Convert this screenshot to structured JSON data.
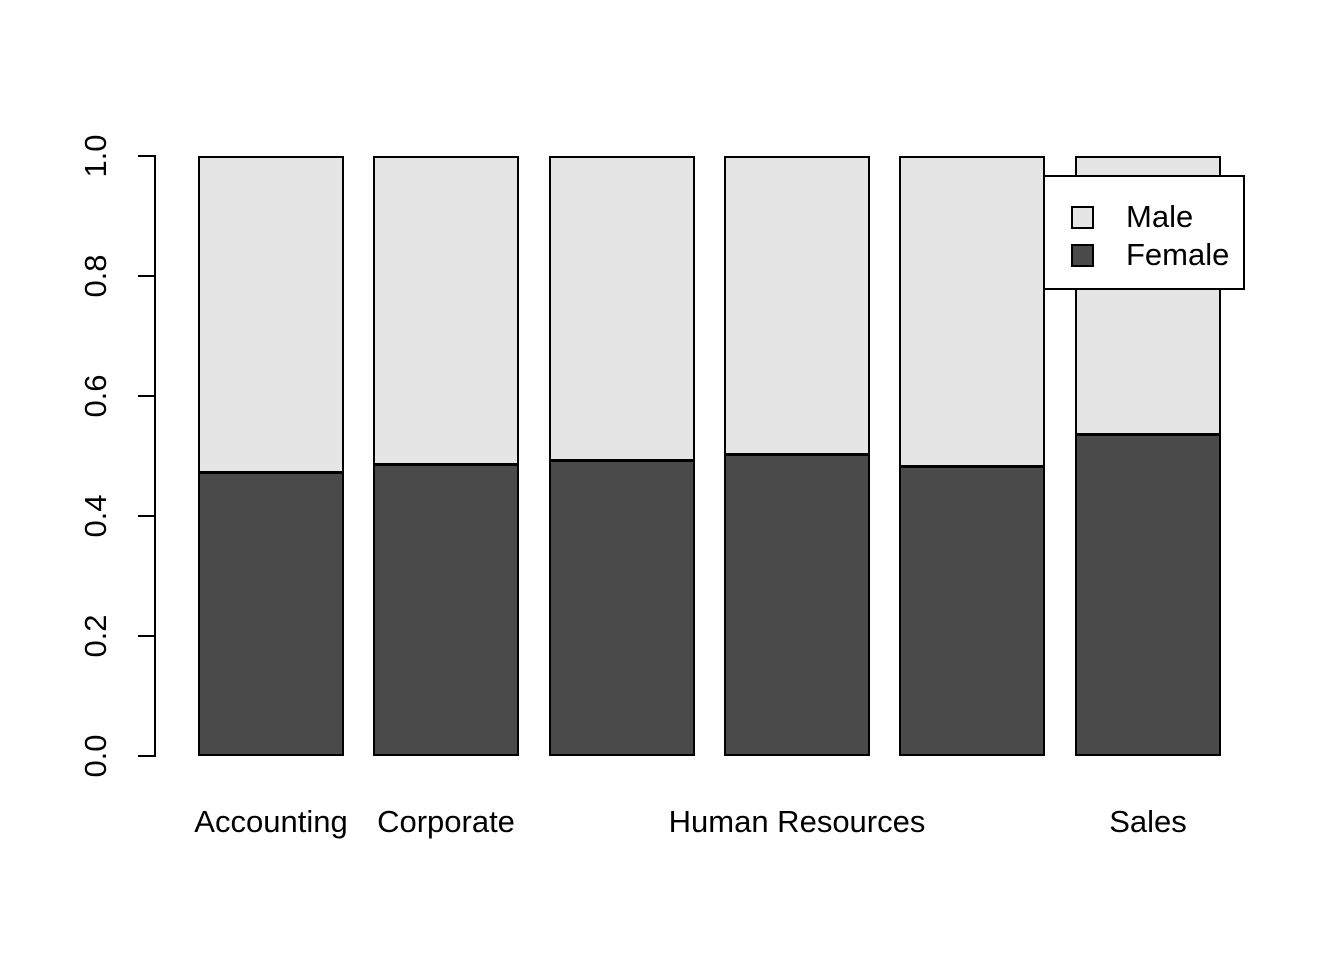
{
  "figure": {
    "background_color": "#ffffff",
    "axis_color": "#000000",
    "bar_border_color": "#000000"
  },
  "chart_data": {
    "type": "bar",
    "stacked": true,
    "orientation": "vertical",
    "title": "",
    "xlabel": "",
    "ylabel": "",
    "categories": [
      "Accounting",
      "Corporate",
      "",
      "Human Resources",
      "",
      "Sales"
    ],
    "series": [
      {
        "name": "Female",
        "color": "#4a4a4a",
        "values": [
          0.472,
          0.485,
          0.491,
          0.502,
          0.482,
          0.535
        ]
      },
      {
        "name": "Male",
        "color": "#e5e5e5",
        "values": [
          0.528,
          0.515,
          0.509,
          0.498,
          0.518,
          0.465
        ]
      }
    ],
    "ylim": [
      0,
      1
    ],
    "ytick_labels": [
      "0.0",
      "0.2",
      "0.4",
      "0.6",
      "0.8",
      "1.0"
    ],
    "ytick_values": [
      0.0,
      0.2,
      0.4,
      0.6,
      0.8,
      1.0
    ],
    "grid": false,
    "legend": {
      "position": "top-right",
      "entries": [
        {
          "label": "Male",
          "color": "#e5e5e5"
        },
        {
          "label": "Female",
          "color": "#4a4a4a"
        }
      ]
    }
  }
}
